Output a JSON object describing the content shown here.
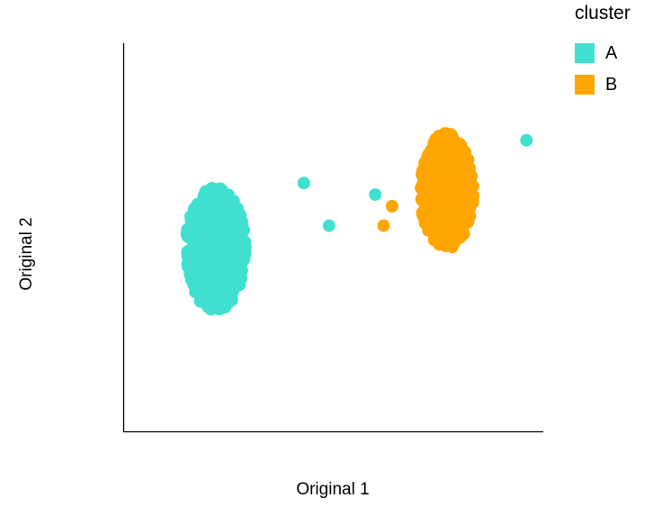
{
  "chart_data": {
    "type": "scatter",
    "xlabel": "Original 1",
    "ylabel": "Original 2",
    "grid": false,
    "axis_ticks": false,
    "xlim": [
      0,
      10
    ],
    "ylim": [
      0,
      10
    ],
    "legend": {
      "title": "cluster",
      "placement": "top-right",
      "entries": [
        "A",
        "B"
      ]
    },
    "series": [
      {
        "name": "A",
        "color": "#40E0D0",
        "n_points": 500,
        "center": [
          2.2,
          4.7
        ],
        "spread": [
          1.45,
          3.3
        ],
        "outliers": [
          [
            4.3,
            6.4
          ],
          [
            4.9,
            5.3
          ],
          [
            6.0,
            6.1
          ]
        ]
      },
      {
        "name": "B",
        "color": "#FFA500",
        "n_points": 500,
        "center": [
          7.7,
          6.2
        ],
        "spread": [
          1.3,
          3.1
        ],
        "outliers": [
          [
            6.2,
            5.3
          ],
          [
            6.4,
            5.8
          ]
        ]
      }
    ],
    "extra_points": [
      {
        "series": "A",
        "x": 9.6,
        "y": 7.5
      }
    ]
  }
}
